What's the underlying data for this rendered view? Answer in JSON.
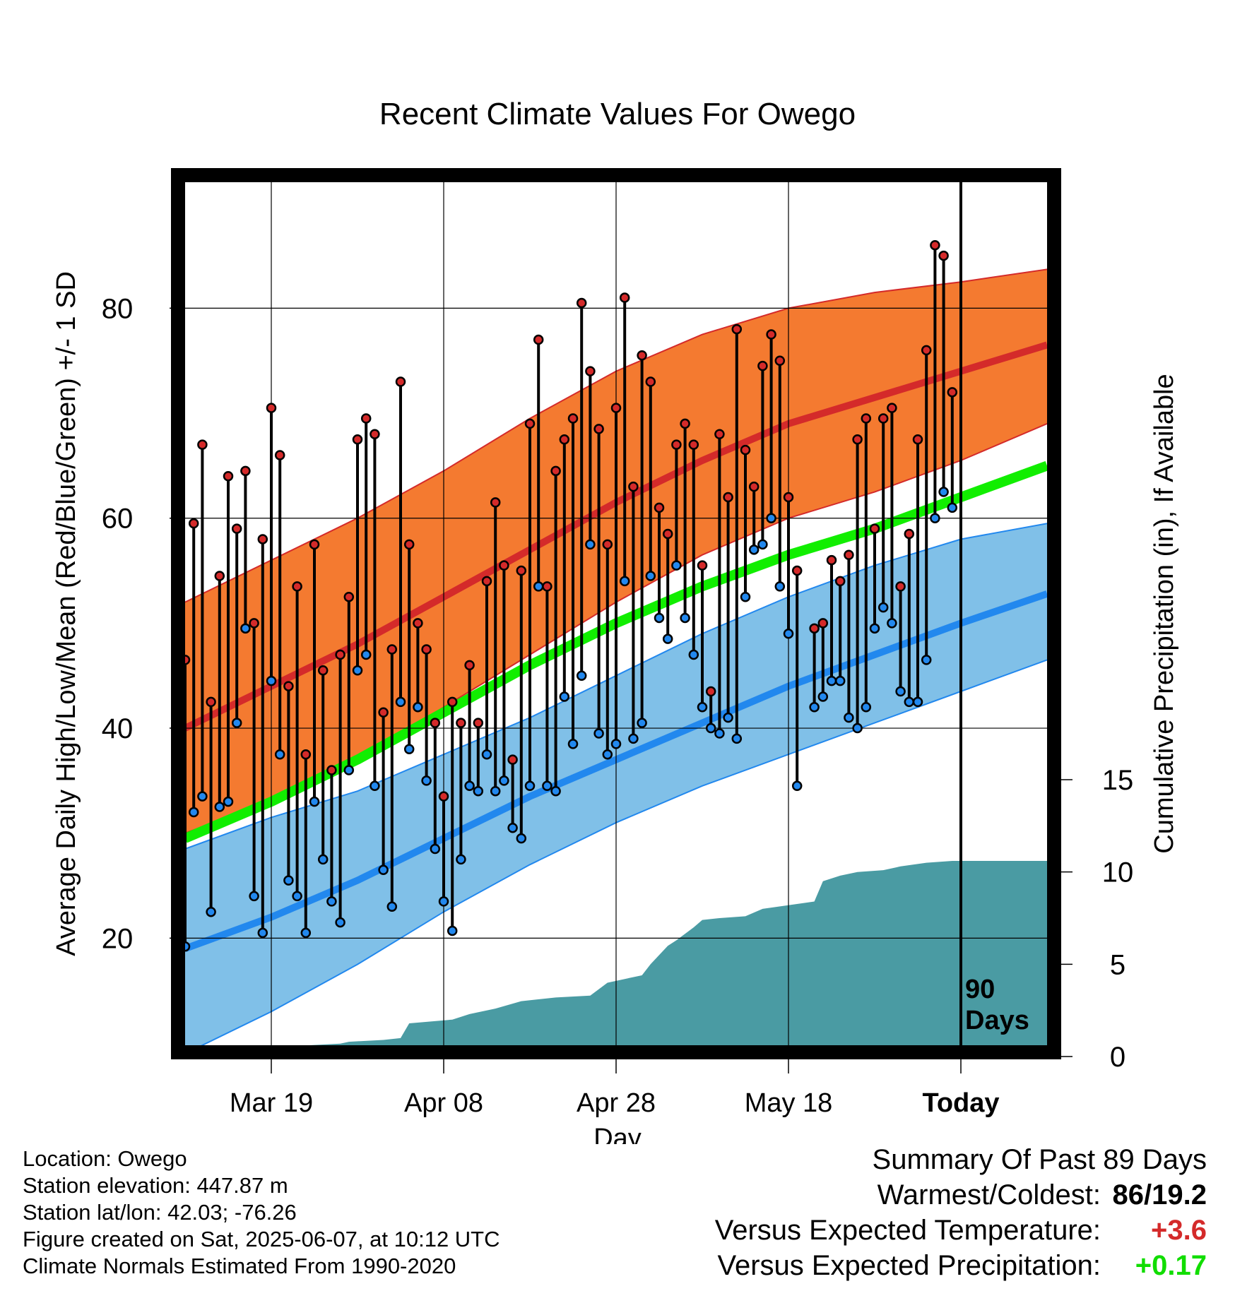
{
  "title": "Recent Climate Values For Owego",
  "xlabel": "Day",
  "ylabel_left": "Average Daily High/Low/Mean (Red/Blue/Green) +/- 1 SD",
  "ylabel_right": "Cumulative Precipitation (in), If Available",
  "days_label": "90\nDays",
  "info": [
    "Location: Owego",
    "Station elevation: 447.87 m",
    "Station lat/lon: 42.03; -76.26",
    "Figure created on Sat, 2025-06-07, at 10:12 UTC",
    "Climate Normals Estimated From 1990-2020"
  ],
  "summary": {
    "title": "Summary Of Past 89 Days",
    "warm_cold_label": "Warmest/Coldest:",
    "warm_cold_value": "86/19.2",
    "temp_label": "Versus Expected Temperature:",
    "temp_value": "+3.6",
    "precip_label": "Versus Expected Precipitation:",
    "precip_value": "+0.17"
  },
  "colors": {
    "high": "#d42a2a",
    "high_band": "#f47a30",
    "low": "#2288ee",
    "low_band": "#80c0e8",
    "mean": "#11ee00",
    "precip": "#4a9ba3",
    "temp_anomaly": "#d42a2a",
    "precip_anomaly": "#11dd00"
  },
  "chart_data": {
    "type": "line",
    "x_unit": "date (2025)",
    "x_range": [
      "2025-03-09",
      "2025-06-17"
    ],
    "today": "2025-06-07",
    "x_ticks": [
      {
        "date": "2025-03-19",
        "label": "Mar 19"
      },
      {
        "date": "2025-04-08",
        "label": "Apr 08"
      },
      {
        "date": "2025-04-28",
        "label": "Apr 28"
      },
      {
        "date": "2025-05-18",
        "label": "May 18"
      },
      {
        "date": "2025-06-07",
        "label": "Today"
      }
    ],
    "y_left_range": [
      9.8,
      92
    ],
    "y_left_ticks": [
      20,
      40,
      60,
      80
    ],
    "y_left_minor": [
      10,
      30,
      50,
      70,
      90
    ],
    "y_right_range": [
      0,
      15
    ],
    "y_right_ticks": [
      0,
      5,
      10,
      15
    ],
    "grid": true,
    "normals": {
      "dates": [
        "2025-03-09",
        "2025-03-19",
        "2025-03-29",
        "2025-04-08",
        "2025-04-18",
        "2025-04-28",
        "2025-05-08",
        "2025-05-18",
        "2025-05-28",
        "2025-06-07",
        "2025-06-17"
      ],
      "high_mean": [
        40,
        44,
        48,
        52.5,
        57,
        61.5,
        65.5,
        69,
        71.5,
        74,
        76.5
      ],
      "high_plus_sd": [
        52,
        56,
        60,
        64.5,
        69.5,
        74,
        77.5,
        80,
        81.5,
        82.5,
        83.7
      ],
      "high_minus_sd": [
        30,
        33,
        37,
        42,
        47,
        52,
        56.5,
        60,
        62.5,
        65.5,
        69
      ],
      "mean": [
        29.5,
        33,
        37,
        41.5,
        46,
        50,
        53.5,
        56.5,
        59,
        62,
        65
      ],
      "low_mean": [
        19,
        22,
        25.5,
        29.5,
        33.5,
        37,
        40.5,
        44,
        47,
        50,
        52.8
      ],
      "low_plus_sd": [
        28.5,
        31.5,
        34,
        37.5,
        41,
        45,
        49,
        52.5,
        55.5,
        58,
        59.5
      ],
      "low_minus_sd": [
        9,
        13,
        17.5,
        22.5,
        27,
        31,
        34.5,
        37.5,
        40.5,
        43.5,
        46.5
      ]
    },
    "daily": {
      "start_date": "2025-03-09",
      "high": [
        46.5,
        59.5,
        67,
        42.5,
        54.5,
        64,
        59,
        64.5,
        50,
        58,
        70.5,
        66,
        44,
        53.5,
        37.5,
        57.5,
        45.5,
        36,
        47,
        52.5,
        67.5,
        69.5,
        68,
        41.5,
        47.5,
        73,
        57.5,
        50,
        47.5,
        40.5,
        33.5,
        42.5,
        40.5,
        46,
        40.5,
        54,
        61.5,
        55.5,
        37,
        55,
        69,
        77,
        53.5,
        64.5,
        67.5,
        69.5,
        80.5,
        74,
        68.5,
        57.5,
        70.5,
        81,
        63,
        75.5,
        73,
        61,
        58.5,
        67,
        69,
        67,
        55.5,
        43.5,
        68,
        62,
        78,
        66.5,
        63,
        74.5,
        77.5,
        75,
        62,
        55,
        null,
        49.5,
        50,
        56,
        54,
        56.5,
        67.5,
        69.5,
        59,
        69.5,
        70.5,
        53.5,
        58.5,
        67.5,
        76,
        86,
        85,
        72
      ],
      "low": [
        19.2,
        32,
        33.5,
        22.5,
        32.5,
        33,
        40.5,
        49.5,
        24,
        20.5,
        44.5,
        37.5,
        25.5,
        24,
        20.5,
        33,
        27.5,
        23.5,
        21.5,
        36,
        45.5,
        47,
        34.5,
        26.5,
        23,
        42.5,
        38,
        42,
        35,
        28.5,
        23.5,
        20.7,
        27.5,
        34.5,
        34,
        37.5,
        34,
        35,
        30.5,
        29.5,
        34.5,
        53.5,
        34.5,
        34,
        43,
        38.5,
        45,
        57.5,
        39.5,
        37.5,
        38.5,
        54,
        39,
        40.5,
        54.5,
        50.5,
        48.5,
        55.5,
        50.5,
        47,
        42,
        40,
        39.5,
        41,
        39,
        52.5,
        57,
        57.5,
        60,
        53.5,
        49,
        34.5,
        null,
        42,
        43,
        44.5,
        44.5,
        41,
        40,
        42,
        49.5,
        51.5,
        50,
        43.5,
        42.5,
        42.5,
        46.5,
        60,
        62.5,
        61
      ]
    },
    "precip_cumulative": {
      "dates": [
        "2025-03-09",
        "2025-03-15",
        "2025-03-16",
        "2025-03-23",
        "2025-03-27",
        "2025-03-28",
        "2025-04-01",
        "2025-04-03",
        "2025-04-04",
        "2025-04-09",
        "2025-04-11",
        "2025-04-14",
        "2025-04-17",
        "2025-04-21",
        "2025-04-25",
        "2025-04-27",
        "2025-04-29",
        "2025-05-01",
        "2025-05-02",
        "2025-05-04",
        "2025-05-05",
        "2025-05-07",
        "2025-05-08",
        "2025-05-10",
        "2025-05-13",
        "2025-05-15",
        "2025-05-21",
        "2025-05-22",
        "2025-05-24",
        "2025-05-26",
        "2025-05-29",
        "2025-05-31",
        "2025-06-03",
        "2025-06-06",
        "2025-06-17"
      ],
      "values": [
        0,
        0,
        0.5,
        0.6,
        0.7,
        0.8,
        0.9,
        1,
        1.8,
        2,
        2.3,
        2.6,
        3,
        3.2,
        3.3,
        4,
        4.2,
        4.4,
        5,
        6,
        6.3,
        7,
        7.4,
        7.5,
        7.6,
        8,
        8.4,
        9.5,
        9.8,
        10,
        10.1,
        10.3,
        10.5,
        10.6,
        10.6
      ]
    }
  }
}
